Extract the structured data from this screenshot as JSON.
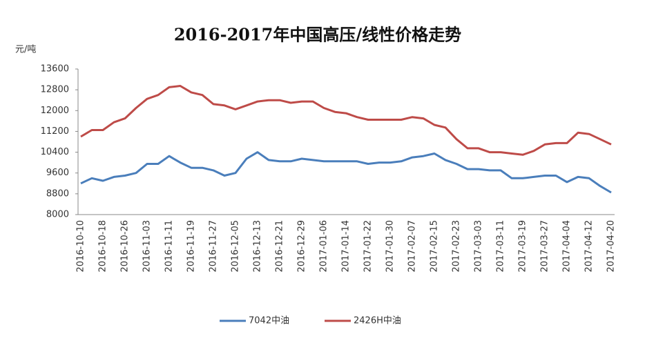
{
  "chart_data": {
    "type": "line",
    "title": "2016-2017年中国高压/线性价格走势",
    "y_label": "元/吨",
    "categories": [
      "2016-10-10",
      null,
      "2016-10-18",
      null,
      "2016-10-26",
      null,
      "2016-11-03",
      null,
      "2016-11-11",
      null,
      "2016-11-19",
      null,
      "2016-11-27",
      null,
      "2016-12-05",
      null,
      "2016-12-13",
      null,
      "2016-12-21",
      null,
      "2016-12-29",
      null,
      "2017-01-06",
      null,
      "2017-01-14",
      null,
      "2017-01-22",
      null,
      "2017-01-30",
      null,
      "2017-02-07",
      null,
      "2017-02-15",
      null,
      "2017-02-23",
      null,
      "2017-03-03",
      null,
      "2017-03-11",
      null,
      "2017-03-19",
      null,
      "2017-03-27",
      null,
      "2017-04-04",
      null,
      "2017-04-12",
      null,
      "2017-04-20"
    ],
    "series": [
      {
        "name": "7042中油",
        "color": "#4a7ebb",
        "values": [
          9200,
          9400,
          9300,
          9450,
          9500,
          9600,
          9950,
          9950,
          10250,
          10000,
          9800,
          9800,
          9700,
          9500,
          9600,
          10150,
          10400,
          10100,
          10050,
          10050,
          10150,
          10100,
          10050,
          10050,
          10050,
          10050,
          9950,
          10000,
          10000,
          10050,
          10200,
          10250,
          10350,
          10100,
          9950,
          9750,
          9750,
          9700,
          9700,
          9400,
          9400,
          9450,
          9500,
          9500,
          9250,
          9450,
          9400,
          9100,
          8850
        ]
      },
      {
        "name": "2426H中油",
        "color": "#be4b48",
        "values": [
          11000,
          11250,
          11250,
          11550,
          11700,
          12100,
          12450,
          12600,
          12900,
          12950,
          12700,
          12600,
          12250,
          12200,
          12050,
          12200,
          12350,
          12400,
          12400,
          12300,
          12350,
          12350,
          12100,
          11950,
          11900,
          11750,
          11650,
          11650,
          11650,
          11650,
          11750,
          11700,
          11450,
          11350,
          10900,
          10550,
          10550,
          10400,
          10400,
          10350,
          10300,
          10450,
          10700,
          10750,
          10750,
          11150,
          11100,
          10900,
          10700
        ]
      }
    ],
    "ylim": [
      8000,
      13600
    ],
    "yticks": [
      8000,
      8800,
      9600,
      10400,
      11200,
      12000,
      12800,
      13600
    ],
    "grid": false
  }
}
